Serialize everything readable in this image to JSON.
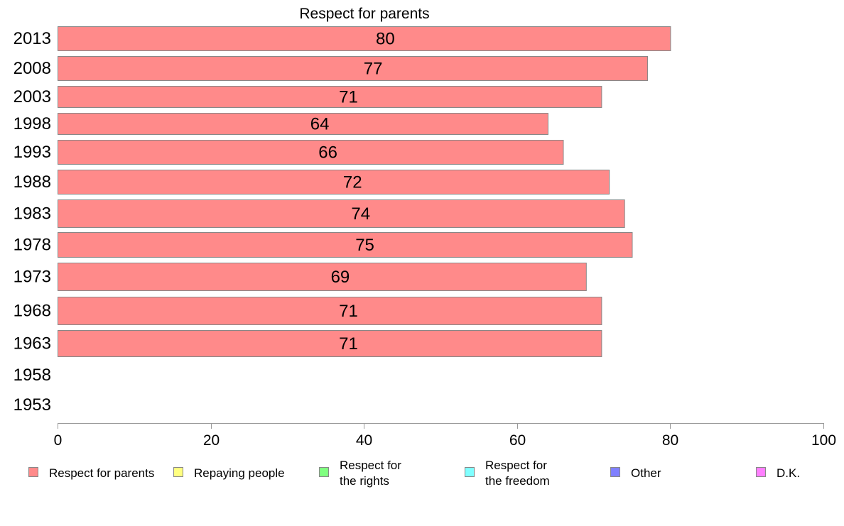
{
  "chart_data": {
    "type": "bar",
    "orientation": "horizontal",
    "title": "Respect for parents",
    "categories": [
      "2013",
      "2008",
      "2003",
      "1998",
      "1993",
      "1988",
      "1983",
      "1978",
      "1973",
      "1968",
      "1963",
      "1958",
      "1953"
    ],
    "series": [
      {
        "name": "Respect for parents",
        "values": [
          80,
          77,
          71,
          64,
          66,
          72,
          74,
          75,
          69,
          71,
          71,
          null,
          null
        ]
      }
    ],
    "data_labels": [
      "80",
      "77",
      "71",
      "64",
      "66",
      "72",
      "74",
      "75",
      "69",
      "71",
      "71",
      "",
      ""
    ],
    "xlim": [
      0,
      100
    ],
    "x_ticks": [
      0,
      20,
      40,
      60,
      80,
      100
    ],
    "x_tick_labels": [
      "0",
      "20",
      "40",
      "60",
      "80",
      "100"
    ],
    "xlabel": "",
    "ylabel": "",
    "grid": false,
    "legend": {
      "placement": "bottom",
      "entries": [
        {
          "label_lines": [
            "Respect for parents"
          ],
          "color": "#ff8a8a"
        },
        {
          "label_lines": [
            "Repaying people"
          ],
          "color": "#ffff80"
        },
        {
          "label_lines": [
            "Respect for",
            "the rights"
          ],
          "color": "#80ff80"
        },
        {
          "label_lines": [
            "Respect for",
            "the freedom"
          ],
          "color": "#80ffff"
        },
        {
          "label_lines": [
            "Other"
          ],
          "color": "#8080ff"
        },
        {
          "label_lines": [
            "D.K."
          ],
          "color": "#ff80ff"
        }
      ]
    },
    "colors": {
      "bar_fill": "#ff8a8a",
      "bar_stroke": "#888888",
      "axis": "#999999"
    }
  }
}
